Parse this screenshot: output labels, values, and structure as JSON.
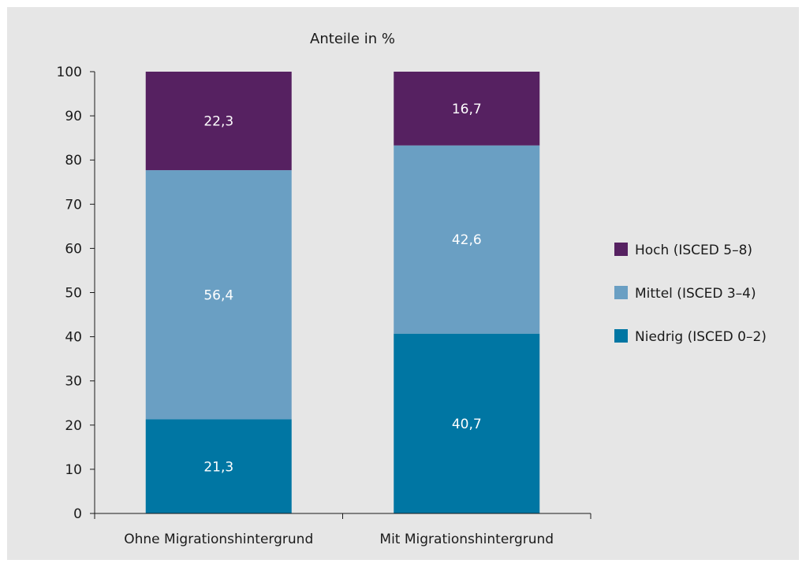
{
  "chart_data": {
    "type": "bar",
    "stacked": true,
    "title": "Anteile in %",
    "xlabel": "",
    "ylabel": "",
    "ylim": [
      0,
      100
    ],
    "yticks": [
      0,
      10,
      20,
      30,
      40,
      50,
      60,
      70,
      80,
      90,
      100
    ],
    "grid": false,
    "legend_position": "right",
    "categories": [
      "Ohne Migrationshintergrund",
      "Mit Migrationshintergrund"
    ],
    "series": [
      {
        "name": "Niedrig (ISCED 0–2)",
        "values": [
          21.3,
          40.7
        ],
        "labels": [
          "21,3",
          "40,7"
        ],
        "color": "#0076a3"
      },
      {
        "name": "Mittel (ISCED 3–4)",
        "values": [
          56.4,
          42.6
        ],
        "labels": [
          "56,4",
          "42,6"
        ],
        "color": "#6a9fc3"
      },
      {
        "name": "Hoch (ISCED 5–8)",
        "values": [
          22.3,
          16.7
        ],
        "labels": [
          "22,3",
          "16,7"
        ],
        "color": "#562161"
      }
    ],
    "legend_order": [
      "Hoch (ISCED 5–8)",
      "Mittel (ISCED 3–4)",
      "Niedrig (ISCED 0–2)"
    ]
  }
}
